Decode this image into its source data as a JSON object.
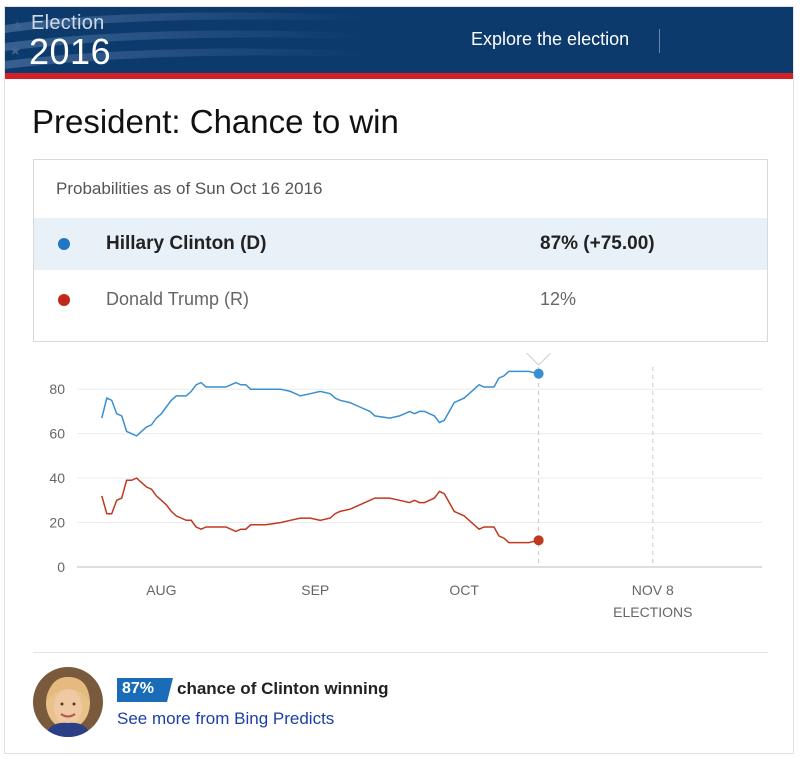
{
  "header": {
    "logo_line1": "Election",
    "logo_line2": "2016",
    "explore_label": "Explore the election",
    "banner_color": "#0c3a6d",
    "rule_color": "#d32027"
  },
  "page_title": "President: Chance to win",
  "probabilities": {
    "as_of": "Probabilities as of Sun Oct 16 2016",
    "rows": [
      {
        "name": "Hillary Clinton (D)",
        "value": "87%  (+75.00)",
        "color": "#1f78c1"
      },
      {
        "name": "Donald Trump (R)",
        "value": "12%",
        "color": "#c0281a"
      }
    ]
  },
  "chart_data": {
    "type": "line",
    "title": "",
    "xlabel": "",
    "ylabel": "",
    "ylim": [
      0,
      90
    ],
    "xlim": [
      "2016-07-15",
      "2016-11-30"
    ],
    "y_ticks": [
      0,
      20,
      40,
      60,
      80
    ],
    "x_ticks": [
      {
        "date": "2016-08-01",
        "label": "AUG"
      },
      {
        "date": "2016-09-01",
        "label": "SEP"
      },
      {
        "date": "2016-10-01",
        "label": "OCT"
      },
      {
        "date": "2016-11-08",
        "label": "NOV 8",
        "label2": "ELECTIONS"
      }
    ],
    "current_date": "2016-10-16",
    "grid": "horizontal",
    "series": [
      {
        "color": "#3a8fd0",
        "points": [
          [
            "2016-07-20",
            67
          ],
          [
            "2016-07-21",
            76
          ],
          [
            "2016-07-22",
            75
          ],
          [
            "2016-07-23",
            69
          ],
          [
            "2016-07-24",
            68
          ],
          [
            "2016-07-25",
            61
          ],
          [
            "2016-07-26",
            60
          ],
          [
            "2016-07-27",
            59
          ],
          [
            "2016-07-28",
            61
          ],
          [
            "2016-07-29",
            63
          ],
          [
            "2016-07-30",
            64
          ],
          [
            "2016-07-31",
            67
          ],
          [
            "2016-08-01",
            69
          ],
          [
            "2016-08-02",
            72
          ],
          [
            "2016-08-03",
            75
          ],
          [
            "2016-08-04",
            77
          ],
          [
            "2016-08-06",
            77
          ],
          [
            "2016-08-07",
            79
          ],
          [
            "2016-08-08",
            82
          ],
          [
            "2016-08-09",
            83
          ],
          [
            "2016-08-10",
            81
          ],
          [
            "2016-08-12",
            81
          ],
          [
            "2016-08-14",
            81
          ],
          [
            "2016-08-15",
            82
          ],
          [
            "2016-08-16",
            83
          ],
          [
            "2016-08-17",
            82
          ],
          [
            "2016-08-18",
            82
          ],
          [
            "2016-08-19",
            80
          ],
          [
            "2016-08-22",
            80
          ],
          [
            "2016-08-25",
            80
          ],
          [
            "2016-08-27",
            79
          ],
          [
            "2016-08-29",
            77
          ],
          [
            "2016-08-31",
            78
          ],
          [
            "2016-09-02",
            79
          ],
          [
            "2016-09-04",
            78
          ],
          [
            "2016-09-05",
            76
          ],
          [
            "2016-09-06",
            75
          ],
          [
            "2016-09-08",
            74
          ],
          [
            "2016-09-10",
            72
          ],
          [
            "2016-09-12",
            70
          ],
          [
            "2016-09-13",
            68
          ],
          [
            "2016-09-16",
            67
          ],
          [
            "2016-09-18",
            68
          ],
          [
            "2016-09-20",
            70
          ],
          [
            "2016-09-21",
            69
          ],
          [
            "2016-09-22",
            70
          ],
          [
            "2016-09-23",
            70
          ],
          [
            "2016-09-24",
            69
          ],
          [
            "2016-09-25",
            68
          ],
          [
            "2016-09-26",
            65
          ],
          [
            "2016-09-27",
            66
          ],
          [
            "2016-09-28",
            70
          ],
          [
            "2016-09-29",
            74
          ],
          [
            "2016-09-30",
            75
          ],
          [
            "2016-10-01",
            76
          ],
          [
            "2016-10-02",
            78
          ],
          [
            "2016-10-03",
            80
          ],
          [
            "2016-10-04",
            82
          ],
          [
            "2016-10-05",
            81
          ],
          [
            "2016-10-06",
            81
          ],
          [
            "2016-10-07",
            81
          ],
          [
            "2016-10-08",
            85
          ],
          [
            "2016-10-09",
            86
          ],
          [
            "2016-10-10",
            88
          ],
          [
            "2016-10-12",
            88
          ],
          [
            "2016-10-14",
            88
          ],
          [
            "2016-10-16",
            87
          ]
        ]
      },
      {
        "color": "#c0381f",
        "points": [
          [
            "2016-07-20",
            32
          ],
          [
            "2016-07-21",
            24
          ],
          [
            "2016-07-22",
            24
          ],
          [
            "2016-07-23",
            30
          ],
          [
            "2016-07-24",
            31
          ],
          [
            "2016-07-25",
            39
          ],
          [
            "2016-07-26",
            39
          ],
          [
            "2016-07-27",
            40
          ],
          [
            "2016-07-28",
            38
          ],
          [
            "2016-07-29",
            36
          ],
          [
            "2016-07-30",
            35
          ],
          [
            "2016-07-31",
            32
          ],
          [
            "2016-08-01",
            30
          ],
          [
            "2016-08-02",
            28
          ],
          [
            "2016-08-03",
            25
          ],
          [
            "2016-08-04",
            23
          ],
          [
            "2016-08-06",
            21
          ],
          [
            "2016-08-07",
            21
          ],
          [
            "2016-08-08",
            18
          ],
          [
            "2016-08-09",
            17
          ],
          [
            "2016-08-10",
            18
          ],
          [
            "2016-08-12",
            18
          ],
          [
            "2016-08-14",
            18
          ],
          [
            "2016-08-15",
            17
          ],
          [
            "2016-08-16",
            16
          ],
          [
            "2016-08-17",
            17
          ],
          [
            "2016-08-18",
            17
          ],
          [
            "2016-08-19",
            19
          ],
          [
            "2016-08-22",
            19
          ],
          [
            "2016-08-25",
            20
          ],
          [
            "2016-08-27",
            21
          ],
          [
            "2016-08-29",
            22
          ],
          [
            "2016-08-31",
            22
          ],
          [
            "2016-09-02",
            21
          ],
          [
            "2016-09-04",
            22
          ],
          [
            "2016-09-05",
            24
          ],
          [
            "2016-09-06",
            25
          ],
          [
            "2016-09-08",
            26
          ],
          [
            "2016-09-10",
            28
          ],
          [
            "2016-09-12",
            30
          ],
          [
            "2016-09-13",
            31
          ],
          [
            "2016-09-16",
            31
          ],
          [
            "2016-09-18",
            30
          ],
          [
            "2016-09-20",
            29
          ],
          [
            "2016-09-21",
            30
          ],
          [
            "2016-09-22",
            29
          ],
          [
            "2016-09-23",
            29
          ],
          [
            "2016-09-24",
            30
          ],
          [
            "2016-09-25",
            31
          ],
          [
            "2016-09-26",
            34
          ],
          [
            "2016-09-27",
            33
          ],
          [
            "2016-09-28",
            29
          ],
          [
            "2016-09-29",
            25
          ],
          [
            "2016-09-30",
            24
          ],
          [
            "2016-10-01",
            23
          ],
          [
            "2016-10-02",
            21
          ],
          [
            "2016-10-03",
            19
          ],
          [
            "2016-10-04",
            17
          ],
          [
            "2016-10-05",
            18
          ],
          [
            "2016-10-06",
            18
          ],
          [
            "2016-10-07",
            18
          ],
          [
            "2016-10-08",
            14
          ],
          [
            "2016-10-09",
            13
          ],
          [
            "2016-10-10",
            11
          ],
          [
            "2016-10-12",
            11
          ],
          [
            "2016-10-14",
            11
          ],
          [
            "2016-10-16",
            12
          ]
        ]
      }
    ]
  },
  "footer": {
    "badge": "87%",
    "badge_color": "#1a6cb8",
    "chance_text": "chance of Clinton winning",
    "link_text": "See more from Bing Predicts"
  }
}
